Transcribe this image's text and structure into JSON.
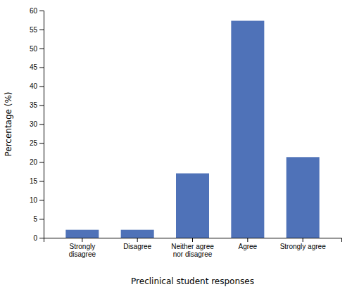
{
  "chart_data": {
    "type": "bar",
    "categories": [
      "Strongly\ndisagree",
      "Disagree",
      "Neither agree\nnor disagree",
      "Agree",
      "Strongly agree"
    ],
    "values": [
      2.1,
      2.1,
      17.0,
      57.3,
      21.3
    ],
    "color": "#4f72b8",
    "xlabel": "Preclinical student responses",
    "ylabel": "Percentage (%)",
    "ylim": [
      0,
      60
    ],
    "yticks": [
      0,
      5,
      10,
      15,
      20,
      25,
      30,
      35,
      40,
      45,
      50,
      55,
      60
    ],
    "grid": false
  }
}
